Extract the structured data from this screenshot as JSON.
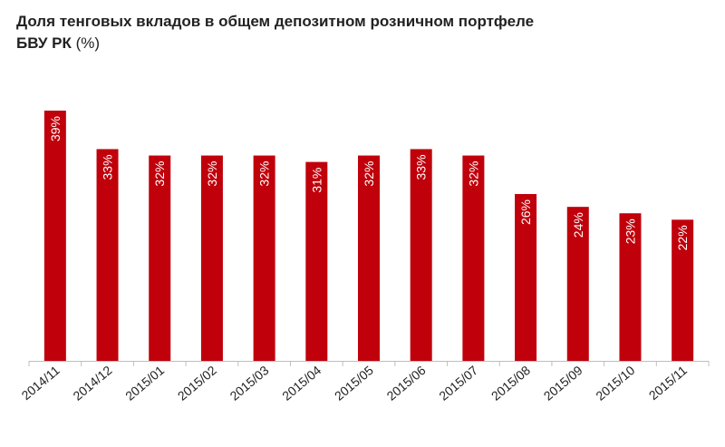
{
  "title_line1": "Доля тенговых вкладов в общем  депозитном розничном портфеле",
  "title_line2": "БВУ РК",
  "title_unit": "(%)",
  "chart_data": {
    "type": "bar",
    "categories": [
      "2014/11",
      "2014/12",
      "2015/01",
      "2015/02",
      "2015/03",
      "2015/04",
      "2015/05",
      "2015/06",
      "2015/07",
      "2015/08",
      "2015/09",
      "2015/10",
      "2015/11"
    ],
    "values": [
      39,
      33,
      32,
      32,
      32,
      31,
      32,
      33,
      32,
      26,
      24,
      23,
      22
    ],
    "value_labels": [
      "39%",
      "33%",
      "32%",
      "32%",
      "32%",
      "31%",
      "32%",
      "33%",
      "32%",
      "26%",
      "24%",
      "23%",
      "22%"
    ],
    "title": "Доля тенговых вкладов в общем  депозитном розничном портфеле БВУ РК (%)",
    "xlabel": "",
    "ylabel": "",
    "ylim": [
      0,
      40
    ],
    "bar_color": "#c0000b",
    "axis_color": "#bfbfbf",
    "grid": false,
    "legend": "none"
  }
}
